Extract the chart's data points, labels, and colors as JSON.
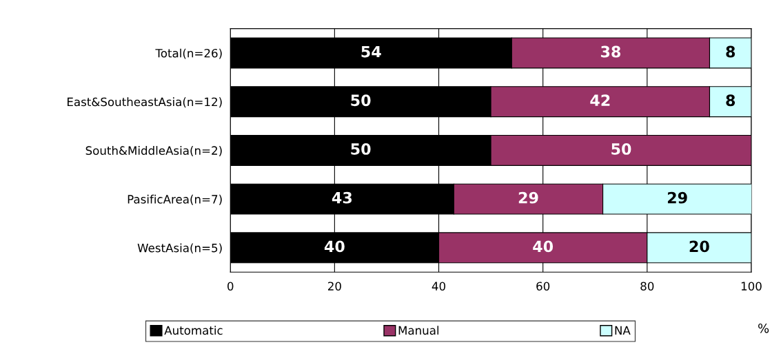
{
  "chart_data": {
    "type": "bar",
    "orientation": "horizontal",
    "stacked": true,
    "categories": [
      "Total(n=26)",
      "East&SoutheastAsia(n=12)",
      "South&MiddleAsia(n=2)",
      "PasificArea(n=7)",
      "WestAsia(n=5)"
    ],
    "series": [
      {
        "name": "Automatic",
        "color": "#000000",
        "values": [
          54,
          50,
          50,
          42.9,
          40
        ],
        "value_labels": [
          "54",
          "50",
          "50",
          "43",
          "40"
        ]
      },
      {
        "name": "Manual",
        "color": "#993366",
        "values": [
          38,
          42,
          50,
          28.6,
          40
        ],
        "value_labels": [
          "38",
          "42",
          "50",
          "29",
          "40"
        ]
      },
      {
        "name": "NA",
        "color": "#ccffff",
        "values": [
          8,
          8,
          null,
          28.6,
          20
        ],
        "value_labels": [
          "8",
          "8",
          null,
          "29",
          "20"
        ]
      }
    ],
    "xlim": [
      0,
      100
    ],
    "xticks": [
      0,
      20,
      40,
      60,
      80,
      100
    ],
    "grid": "x",
    "legend": "bottom",
    "annotations": [
      "%"
    ]
  }
}
